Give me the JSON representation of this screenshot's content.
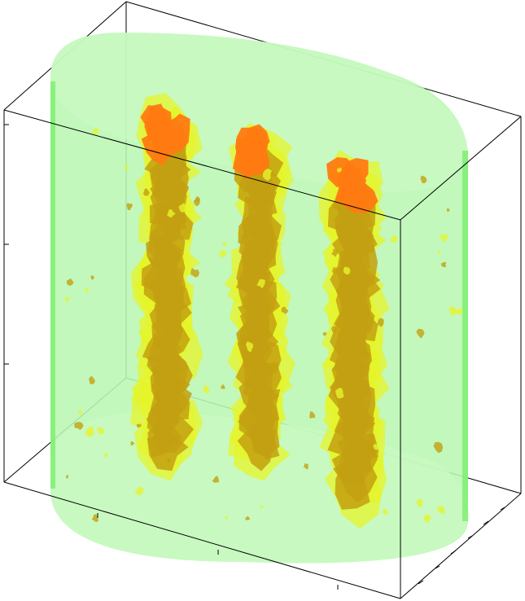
{
  "scene": {
    "subject": "3d-isosurface-volume-render",
    "colors": {
      "background": "#ffffff",
      "cylinder_fill": "#b9f7b3",
      "cylinder_edge": "#6fee62",
      "cylinder_side": "#8ff27f",
      "plume_yellow": "#e6f42a",
      "plume_olive": "#c3a012",
      "plume_orange": "#ff7a12",
      "box_edge": "#000000"
    },
    "plumes": [
      {
        "name": "left-plume"
      },
      {
        "name": "center-plume"
      },
      {
        "name": "right-plume"
      }
    ]
  }
}
